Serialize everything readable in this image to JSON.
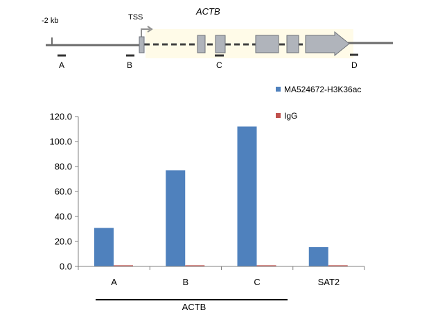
{
  "gene_diagram": {
    "gene_name": "ACTB",
    "upstream_label": "-2 kb",
    "tss_label": "TSS",
    "primer_labels": [
      "A",
      "B",
      "C",
      "D"
    ]
  },
  "chart_data": {
    "type": "bar",
    "categories": [
      "A",
      "B",
      "C",
      "SAT2"
    ],
    "series": [
      {
        "name": "MA524672-H3K36ac",
        "color": "#4f81bd",
        "values": [
          30.8,
          77.0,
          112.0,
          15.5
        ]
      },
      {
        "name": "IgG",
        "color": "#c0504d",
        "values": [
          0.9,
          0.9,
          0.9,
          0.9
        ]
      }
    ],
    "ylim": [
      0,
      120
    ],
    "yticks": [
      "0.0",
      "20.0",
      "40.0",
      "60.0",
      "80.0",
      "100.0",
      "120.0"
    ],
    "group_label": "ACTB",
    "legend_position": "top-right",
    "grid": false
  }
}
